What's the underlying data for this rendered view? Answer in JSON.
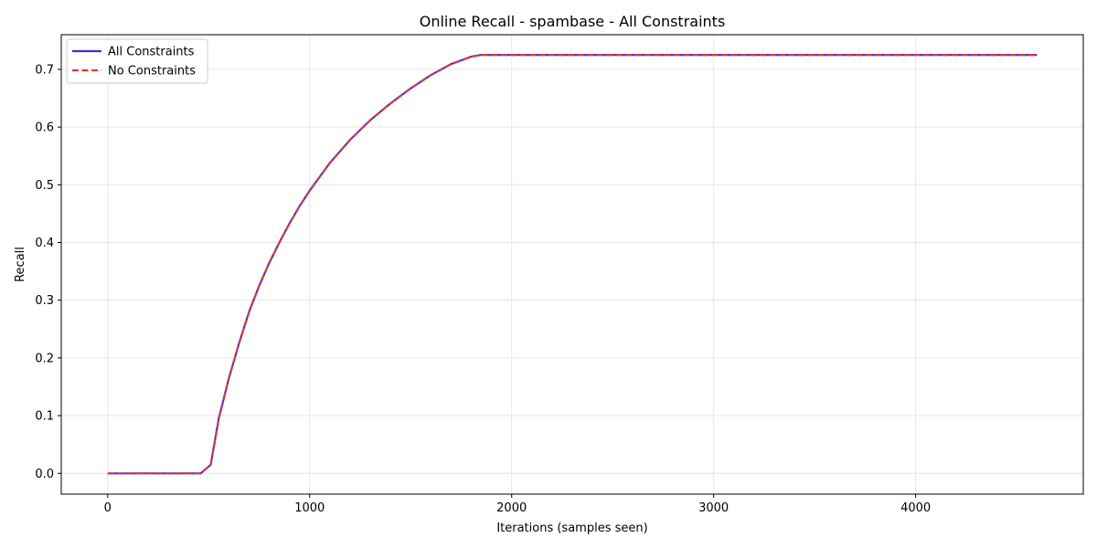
{
  "chart_data": {
    "type": "line",
    "title": "Online Recall - spambase - All Constraints",
    "xlabel": "Iterations (samples seen)",
    "ylabel": "Recall",
    "xlim": [
      -230,
      4830
    ],
    "ylim": [
      -0.036,
      0.76
    ],
    "xticks": [
      0,
      1000,
      2000,
      3000,
      4000
    ],
    "yticks": [
      0.0,
      0.1,
      0.2,
      0.3,
      0.4,
      0.5,
      0.6,
      0.7
    ],
    "ytick_labels": [
      "0.0",
      "0.1",
      "0.2",
      "0.3",
      "0.4",
      "0.5",
      "0.6",
      "0.7"
    ],
    "grid": true,
    "legend_position": "upper-left",
    "series": [
      {
        "name": "All Constraints",
        "color": "#3333dd",
        "style": "solid",
        "x": [
          0,
          100,
          200,
          300,
          400,
          460,
          510,
          550,
          600,
          650,
          700,
          750,
          800,
          850,
          900,
          950,
          1000,
          1100,
          1200,
          1300,
          1400,
          1500,
          1600,
          1700,
          1800,
          1850,
          2000,
          2500,
          3000,
          3500,
          4000,
          4601
        ],
        "y": [
          0.0,
          0.0,
          0.0,
          0.0,
          0.0,
          0.0,
          0.015,
          0.095,
          0.165,
          0.225,
          0.28,
          0.325,
          0.365,
          0.4,
          0.433,
          0.463,
          0.49,
          0.538,
          0.578,
          0.612,
          0.641,
          0.667,
          0.69,
          0.709,
          0.722,
          0.725,
          0.725,
          0.725,
          0.725,
          0.725,
          0.725,
          0.725
        ]
      },
      {
        "name": "No Constraints",
        "color": "#ee3333",
        "style": "dashed",
        "x": [
          0,
          100,
          200,
          300,
          400,
          460,
          510,
          550,
          600,
          650,
          700,
          750,
          800,
          850,
          900,
          950,
          1000,
          1100,
          1200,
          1300,
          1400,
          1500,
          1600,
          1700,
          1800,
          1850,
          2000,
          2500,
          3000,
          3500,
          4000,
          4601
        ],
        "y": [
          0.0,
          0.0,
          0.0,
          0.0,
          0.0,
          0.0,
          0.015,
          0.095,
          0.165,
          0.225,
          0.28,
          0.325,
          0.365,
          0.4,
          0.433,
          0.463,
          0.49,
          0.538,
          0.578,
          0.612,
          0.641,
          0.667,
          0.69,
          0.709,
          0.722,
          0.725,
          0.725,
          0.725,
          0.725,
          0.725,
          0.725,
          0.725
        ]
      }
    ]
  }
}
